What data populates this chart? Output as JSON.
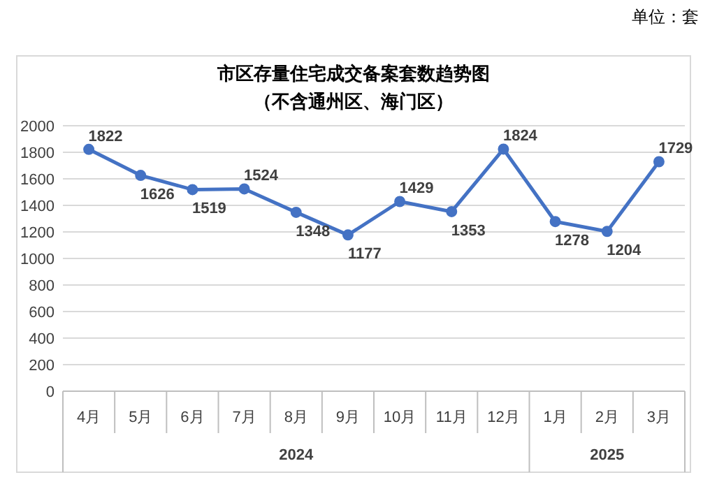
{
  "chart_data": {
    "type": "line",
    "title": "市区存量住宅成交备案套数趋势图",
    "subtitle": "（不含通州区、海门区）",
    "categories": [
      "4月",
      "5月",
      "6月",
      "7月",
      "8月",
      "9月",
      "10月",
      "11月",
      "12月",
      "1月",
      "2月",
      "3月"
    ],
    "series": [
      {
        "color": "#4472c4",
        "values": [
          1822,
          1626,
          1519,
          1524,
          1348,
          1177,
          1429,
          1353,
          1824,
          1278,
          1204,
          1729
        ]
      }
    ],
    "ylim": [
      0,
      2000
    ],
    "yticks": [
      0,
      200,
      400,
      600,
      800,
      1000,
      1200,
      1400,
      1600,
      1800,
      2000
    ],
    "grid": "y",
    "marker": "circle",
    "line_style": "solid",
    "data_labels": true,
    "annotations": [
      "单位：套",
      "2024",
      "2025"
    ]
  }
}
